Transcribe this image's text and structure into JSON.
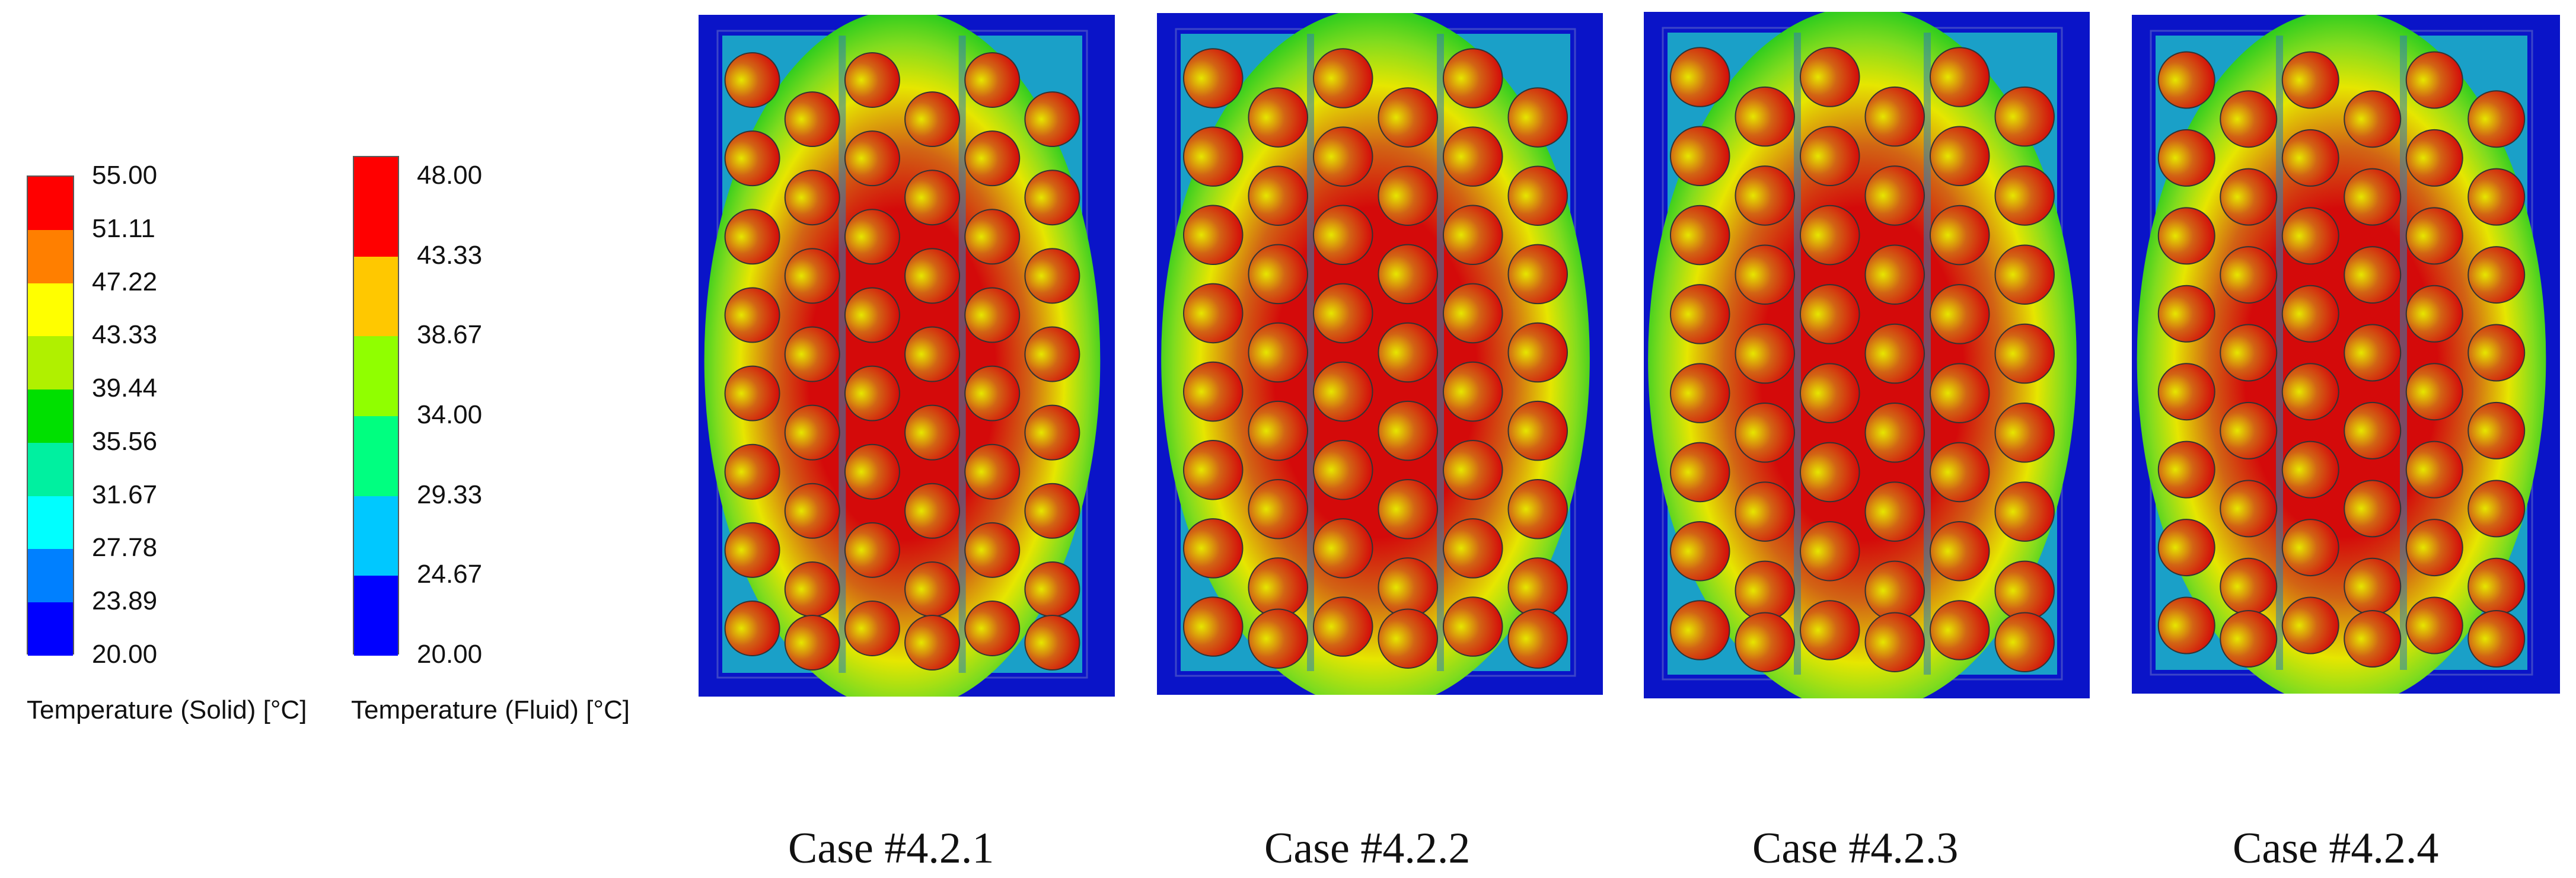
{
  "legends": [
    {
      "title": "Temperature (Solid) [°C]",
      "ticks": [
        "55.00",
        "51.11",
        "47.22",
        "43.33",
        "39.44",
        "35.56",
        "31.67",
        "27.78",
        "23.89",
        "20.00"
      ],
      "colors": [
        "#ff0000",
        "#ff7f00",
        "#ffff00",
        "#b0f000",
        "#00e000",
        "#00f0a0",
        "#00ffff",
        "#0080ff",
        "#0000ff"
      ]
    },
    {
      "title": "Temperature (Fluid) [°C]",
      "ticks": [
        "48.00",
        "43.33",
        "38.67",
        "34.00",
        "29.33",
        "24.67",
        "20.00"
      ],
      "colors": [
        "#ff0000",
        "#ffc800",
        "#90ff00",
        "#00ff80",
        "#00c8ff",
        "#0000ff"
      ]
    }
  ],
  "cases": [
    {
      "caption": "Case #4.2.1"
    },
    {
      "caption": "Case #4.2.2"
    },
    {
      "caption": "Case #4.2.3"
    },
    {
      "caption": "Case #4.2.4"
    }
  ],
  "colors": {
    "frame_blue": "#0a14c8",
    "channel_cyan": "#1aa0c8",
    "hot_red": "#d40a0a",
    "warm_orange": "#d26414",
    "yellow": "#e6e600",
    "light_green": "#82dc1e",
    "green": "#14c81e",
    "aqua_green": "#14c882"
  }
}
